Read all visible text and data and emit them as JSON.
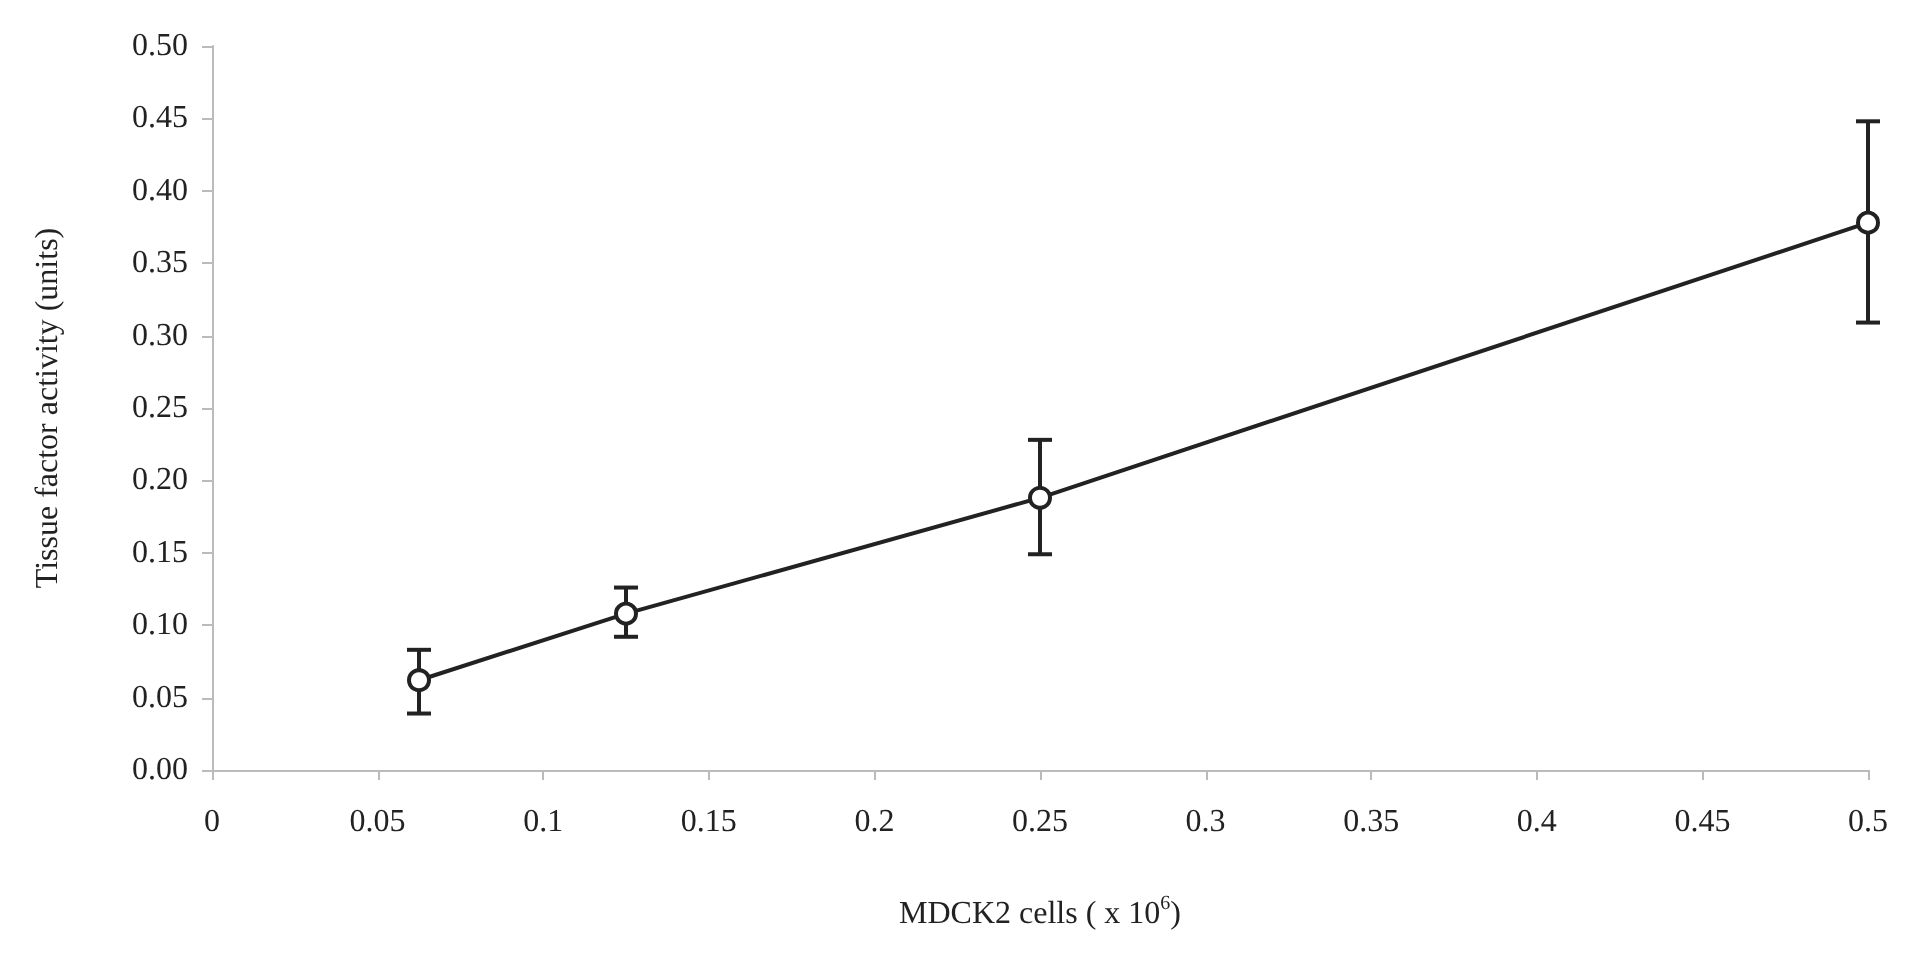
{
  "chart_data": {
    "type": "line",
    "xlabel": "MDCK2 cells ( x 10$^{6}$)",
    "ylabel": "Tissue factor activity (units)",
    "x": [
      0.0625,
      0.125,
      0.25,
      0.5
    ],
    "series": [
      {
        "color": "#222222",
        "values": [
          0.062,
          0.108,
          0.188,
          0.378
        ],
        "errors": [
          [
            0.039,
            0.083
          ],
          [
            0.092,
            0.126
          ],
          [
            0.149,
            0.228
          ],
          [
            0.309,
            0.448
          ]
        ]
      }
    ],
    "xlim": [
      0,
      0.5
    ],
    "xticks": [
      0,
      0.05,
      0.1,
      0.15,
      0.2,
      0.25,
      0.3,
      0.35,
      0.4,
      0.45,
      0.5
    ],
    "ylim": [
      0,
      0.5
    ],
    "yticks": [
      {
        "value": 0,
        "label": "0.00"
      },
      {
        "value": 0.05,
        "label": "0.05"
      },
      {
        "value": 0.1,
        "label": "0.10"
      },
      {
        "value": 0.15,
        "label": "0.15"
      },
      {
        "value": 0.2,
        "label": "0.20"
      },
      {
        "value": 0.25,
        "label": "0.25"
      },
      {
        "value": 0.3,
        "label": "0.30"
      },
      {
        "value": 0.35,
        "label": "0.35"
      },
      {
        "value": 0.4,
        "label": "0.40"
      },
      {
        "value": 0.45,
        "label": "0.45"
      },
      {
        "value": 0.5,
        "label": "0.50"
      }
    ],
    "grid": false,
    "marker": "circle",
    "line_style": "solid"
  }
}
